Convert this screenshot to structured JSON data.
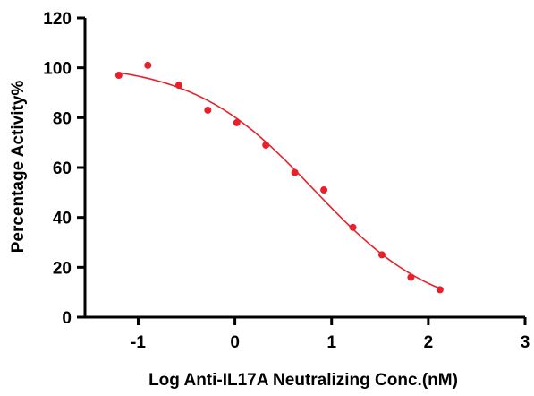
{
  "chart_data": {
    "type": "scatter",
    "title": "",
    "xlabel": "Log Anti-IL17A Neutralizing Conc.(nM)",
    "ylabel": "Percentage Activity%",
    "xlim": [
      -1.55,
      3
    ],
    "ylim": [
      0,
      120
    ],
    "x_ticks": [
      -1,
      0,
      1,
      2,
      3
    ],
    "x_tick_labels": [
      "-1",
      "0",
      "1",
      "2",
      "3"
    ],
    "y_ticks": [
      0,
      20,
      40,
      60,
      80,
      100,
      120
    ],
    "y_tick_labels": [
      "0",
      "20",
      "40",
      "60",
      "80",
      "100",
      "120"
    ],
    "grid": false,
    "legend": "none",
    "color": "#e8202a",
    "series": [
      {
        "points": [
          {
            "x": -1.2,
            "y": 97
          },
          {
            "x": -0.9,
            "y": 101
          },
          {
            "x": -0.58,
            "y": 93
          },
          {
            "x": -0.28,
            "y": 83
          },
          {
            "x": 0.02,
            "y": 78
          },
          {
            "x": 0.32,
            "y": 69
          },
          {
            "x": 0.62,
            "y": 58
          },
          {
            "x": 0.92,
            "y": 51
          },
          {
            "x": 1.22,
            "y": 36
          },
          {
            "x": 1.52,
            "y": 25
          },
          {
            "x": 1.82,
            "y": 16
          },
          {
            "x": 2.12,
            "y": 11
          }
        ],
        "fit": {
          "model": "four-parameter logistic",
          "top": 102,
          "bottom": 0,
          "log_ic50": 0.82,
          "hill_slope": -0.69,
          "x_range": [
            -1.2,
            2.12
          ]
        }
      }
    ]
  }
}
